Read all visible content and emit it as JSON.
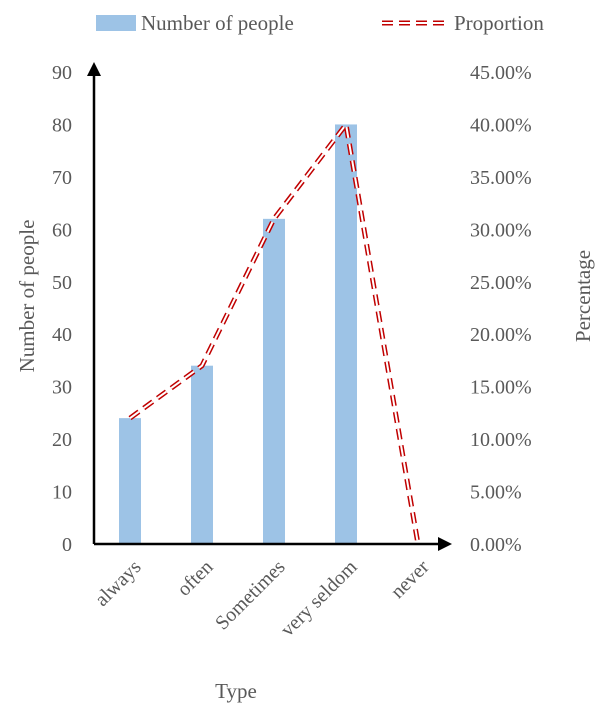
{
  "chart_data": {
    "type": "bar",
    "categories": [
      "always",
      "often",
      "Sometimes",
      "very seldom",
      "never"
    ],
    "series": [
      {
        "name": "Number of people",
        "type": "bar",
        "axis": "left",
        "values": [
          24,
          34,
          62,
          80,
          0
        ]
      },
      {
        "name": "Proportion",
        "type": "line",
        "axis": "right",
        "values": [
          0.12,
          0.17,
          0.31,
          0.4,
          0.0
        ]
      }
    ],
    "xlabel": "Type",
    "ylabel": "Number of people",
    "y2label": "Percentage",
    "ylim": [
      0,
      90
    ],
    "y2lim": [
      0,
      0.45
    ],
    "yticks": [
      "0",
      "10",
      "20",
      "30",
      "40",
      "50",
      "60",
      "70",
      "80",
      "90"
    ],
    "y2ticks": [
      "0.00%",
      "5.00%",
      "10.00%",
      "15.00%",
      "20.00%",
      "25.00%",
      "30.00%",
      "35.00%",
      "40.00%",
      "45.00%"
    ],
    "grid": false,
    "legend_position": "top",
    "colors": {
      "bar": "#9DC3E6",
      "line": "#C00000",
      "axis": "#000000",
      "text": "#595959"
    }
  }
}
